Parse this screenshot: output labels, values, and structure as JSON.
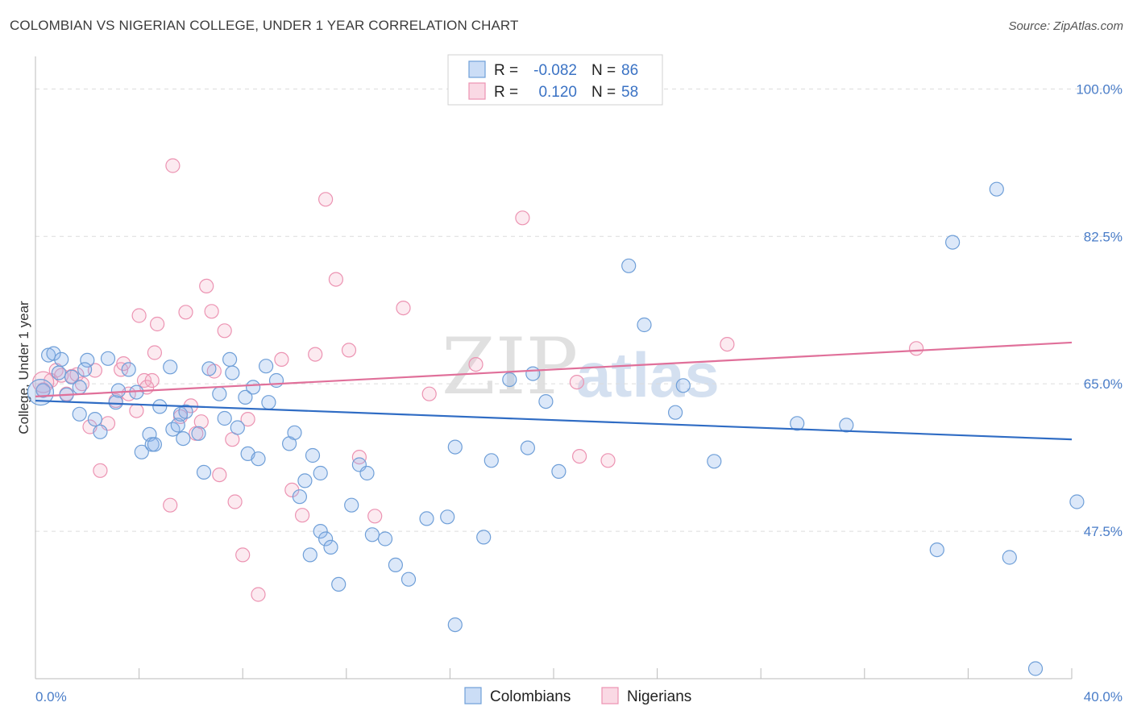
{
  "header": {
    "title": "COLOMBIAN VS NIGERIAN COLLEGE, UNDER 1 YEAR CORRELATION CHART",
    "source": "Source: ZipAtlas.com"
  },
  "watermark": {
    "zip": "ZIP",
    "atlas": "atlas"
  },
  "legend": {
    "row1": {
      "r_label": "R =",
      "r_value": "-0.082",
      "n_label": "N =",
      "n_value": "86"
    },
    "row2": {
      "r_label": "R =",
      "r_value": "0.120",
      "n_label": "N =",
      "n_value": "58"
    }
  },
  "bottom_legend": {
    "colombians": "Colombians",
    "nigerians": "Nigerians"
  },
  "colors": {
    "colombians": "#3a72c4",
    "nigerians": "#e0709a"
  },
  "chart_data": {
    "type": "scatter",
    "title": "COLOMBIAN VS NIGERIAN COLLEGE, UNDER 1 YEAR CORRELATION CHART",
    "xlabel": "",
    "ylabel": "College, Under 1 year",
    "xlim": [
      0,
      40
    ],
    "ylim": [
      30,
      103
    ],
    "x_tick_labels": [
      "0.0%",
      "40.0%"
    ],
    "y_ticks": [
      47.5,
      65.0,
      82.5,
      100.0
    ],
    "y_tick_labels": [
      "47.5%",
      "65.0%",
      "82.5%",
      "100.0%"
    ],
    "series": [
      {
        "name": "Colombians",
        "r": -0.082,
        "n": 86,
        "trend": {
          "x": [
            0,
            40
          ],
          "y": [
            63.0,
            58.4
          ]
        },
        "points": [
          [
            0.3,
            64.2
          ],
          [
            0.5,
            68.4
          ],
          [
            0.7,
            68.6
          ],
          [
            1.0,
            67.9
          ],
          [
            1.4,
            65.8
          ],
          [
            1.2,
            63.7
          ],
          [
            0.9,
            66.3
          ],
          [
            2.0,
            67.8
          ],
          [
            1.7,
            64.6
          ],
          [
            1.9,
            66.7
          ],
          [
            1.7,
            61.4
          ],
          [
            2.3,
            60.8
          ],
          [
            2.5,
            59.3
          ],
          [
            3.1,
            62.8
          ],
          [
            2.8,
            68.0
          ],
          [
            3.2,
            64.2
          ],
          [
            3.6,
            66.7
          ],
          [
            3.9,
            64.0
          ],
          [
            4.1,
            56.9
          ],
          [
            4.4,
            59.0
          ],
          [
            4.5,
            57.8
          ],
          [
            4.6,
            57.8
          ],
          [
            4.8,
            62.3
          ],
          [
            5.2,
            67.0
          ],
          [
            5.3,
            59.6
          ],
          [
            5.5,
            60.1
          ],
          [
            5.6,
            61.4
          ],
          [
            5.7,
            58.5
          ],
          [
            5.8,
            61.7
          ],
          [
            6.3,
            59.1
          ],
          [
            6.5,
            54.5
          ],
          [
            6.7,
            66.8
          ],
          [
            7.1,
            63.8
          ],
          [
            7.3,
            60.9
          ],
          [
            7.5,
            67.9
          ],
          [
            7.6,
            66.3
          ],
          [
            7.8,
            59.8
          ],
          [
            8.1,
            63.4
          ],
          [
            8.2,
            56.7
          ],
          [
            8.4,
            64.6
          ],
          [
            8.6,
            56.1
          ],
          [
            8.9,
            67.1
          ],
          [
            9.0,
            62.8
          ],
          [
            9.3,
            65.4
          ],
          [
            9.8,
            57.9
          ],
          [
            10.0,
            59.2
          ],
          [
            10.2,
            51.6
          ],
          [
            10.4,
            53.5
          ],
          [
            10.7,
            56.5
          ],
          [
            11.0,
            54.4
          ],
          [
            10.6,
            44.7
          ],
          [
            11.0,
            47.5
          ],
          [
            11.2,
            46.6
          ],
          [
            11.4,
            45.6
          ],
          [
            11.7,
            41.2
          ],
          [
            12.2,
            50.6
          ],
          [
            12.5,
            55.4
          ],
          [
            12.8,
            54.4
          ],
          [
            13.0,
            47.1
          ],
          [
            13.5,
            46.6
          ],
          [
            13.9,
            43.5
          ],
          [
            14.4,
            41.8
          ],
          [
            15.1,
            49.0
          ],
          [
            15.9,
            49.2
          ],
          [
            16.2,
            57.5
          ],
          [
            16.2,
            36.4
          ],
          [
            17.3,
            46.8
          ],
          [
            17.6,
            55.9
          ],
          [
            18.3,
            65.5
          ],
          [
            19.0,
            57.4
          ],
          [
            19.2,
            66.2
          ],
          [
            19.7,
            62.9
          ],
          [
            20.2,
            54.6
          ],
          [
            22.9,
            79.0
          ],
          [
            23.5,
            72.0
          ],
          [
            25.0,
            64.8
          ],
          [
            26.2,
            55.8
          ],
          [
            29.4,
            60.3
          ],
          [
            31.3,
            60.1
          ],
          [
            35.4,
            81.8
          ],
          [
            37.1,
            88.1
          ],
          [
            37.6,
            44.4
          ],
          [
            38.6,
            31.2
          ],
          [
            40.2,
            51.0
          ],
          [
            34.8,
            45.3
          ],
          [
            24.7,
            61.6
          ]
        ]
      },
      {
        "name": "Nigerians",
        "r": 0.12,
        "n": 58,
        "trend": {
          "x": [
            0,
            40
          ],
          "y": [
            63.5,
            69.9
          ]
        },
        "points": [
          [
            0.3,
            64.3
          ],
          [
            0.6,
            65.4
          ],
          [
            0.8,
            66.6
          ],
          [
            1.0,
            66.0
          ],
          [
            1.2,
            63.8
          ],
          [
            1.4,
            65.9
          ],
          [
            1.6,
            66.1
          ],
          [
            1.8,
            65.0
          ],
          [
            2.1,
            59.9
          ],
          [
            2.3,
            66.6
          ],
          [
            2.5,
            54.7
          ],
          [
            2.8,
            60.3
          ],
          [
            3.1,
            63.0
          ],
          [
            3.3,
            66.7
          ],
          [
            3.4,
            67.4
          ],
          [
            3.6,
            63.8
          ],
          [
            3.9,
            61.8
          ],
          [
            4.0,
            73.1
          ],
          [
            4.2,
            65.4
          ],
          [
            4.3,
            64.6
          ],
          [
            4.5,
            65.4
          ],
          [
            4.6,
            68.7
          ],
          [
            4.7,
            72.1
          ],
          [
            5.2,
            50.6
          ],
          [
            5.3,
            90.9
          ],
          [
            5.6,
            61.1
          ],
          [
            5.8,
            73.5
          ],
          [
            6.0,
            62.4
          ],
          [
            6.2,
            59.1
          ],
          [
            6.4,
            60.5
          ],
          [
            6.6,
            76.6
          ],
          [
            6.8,
            73.6
          ],
          [
            6.9,
            66.5
          ],
          [
            7.1,
            54.2
          ],
          [
            7.3,
            71.3
          ],
          [
            7.6,
            58.4
          ],
          [
            7.7,
            51.0
          ],
          [
            8.0,
            44.7
          ],
          [
            8.2,
            60.8
          ],
          [
            8.6,
            40.0
          ],
          [
            9.5,
            67.9
          ],
          [
            9.9,
            52.4
          ],
          [
            10.3,
            49.4
          ],
          [
            10.8,
            68.5
          ],
          [
            11.2,
            86.9
          ],
          [
            11.6,
            77.4
          ],
          [
            12.1,
            69.0
          ],
          [
            12.5,
            56.3
          ],
          [
            13.1,
            49.3
          ],
          [
            14.2,
            74.0
          ],
          [
            15.2,
            63.8
          ],
          [
            17.0,
            67.3
          ],
          [
            18.8,
            84.7
          ],
          [
            20.9,
            65.2
          ],
          [
            22.1,
            55.9
          ],
          [
            26.7,
            69.7
          ],
          [
            34.0,
            69.2
          ],
          [
            21.0,
            56.4
          ]
        ]
      }
    ]
  }
}
